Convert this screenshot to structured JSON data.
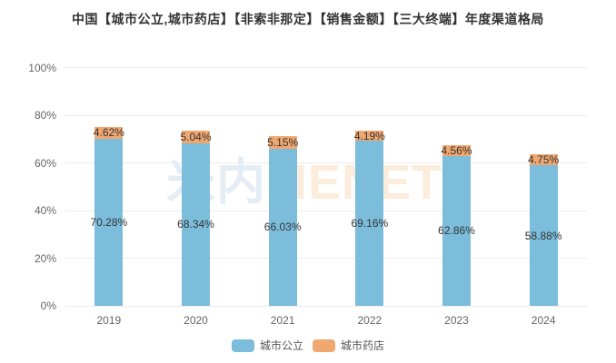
{
  "title": "中国【城市公立,城市药店】【非索非那定】【销售金额】【三大终端】年度渠道格局",
  "watermark": {
    "part_cn": "米内",
    "part_en": "MENET"
  },
  "colors": {
    "series_blue": "#7cbddc",
    "series_orange": "#f0a870",
    "grid": "#ececec",
    "axis_text": "#666666",
    "label_text": "#333333",
    "title_text": "#333333"
  },
  "chart_data": {
    "type": "bar",
    "stacked": true,
    "title": "中国【城市公立,城市药店】【非索非那定】【销售金额】【三大终端】年度渠道格局",
    "categories": [
      "2019",
      "2020",
      "2021",
      "2022",
      "2023",
      "2024"
    ],
    "series": [
      {
        "name": "城市公立",
        "color": "#7cbddc",
        "values": [
          70.28,
          68.34,
          66.03,
          69.16,
          62.86,
          58.88
        ],
        "labels": [
          "70.28%",
          "68.34%",
          "66.03%",
          "69.16%",
          "62.86%",
          "58.88%"
        ]
      },
      {
        "name": "城市药店",
        "color": "#f0a870",
        "values": [
          4.62,
          5.04,
          5.15,
          4.19,
          4.56,
          4.75
        ],
        "labels": [
          "4.62%",
          "5.04%",
          "5.15%",
          "4.19%",
          "4.56%",
          "4.75%"
        ]
      }
    ],
    "xlabel": "",
    "ylabel": "",
    "ylim": [
      0,
      100
    ],
    "yticks": [
      0,
      20,
      40,
      60,
      80,
      100
    ],
    "ytick_labels": [
      "0%",
      "20%",
      "40%",
      "60%",
      "80%",
      "100%"
    ],
    "grid": true,
    "legend_position": "bottom"
  }
}
